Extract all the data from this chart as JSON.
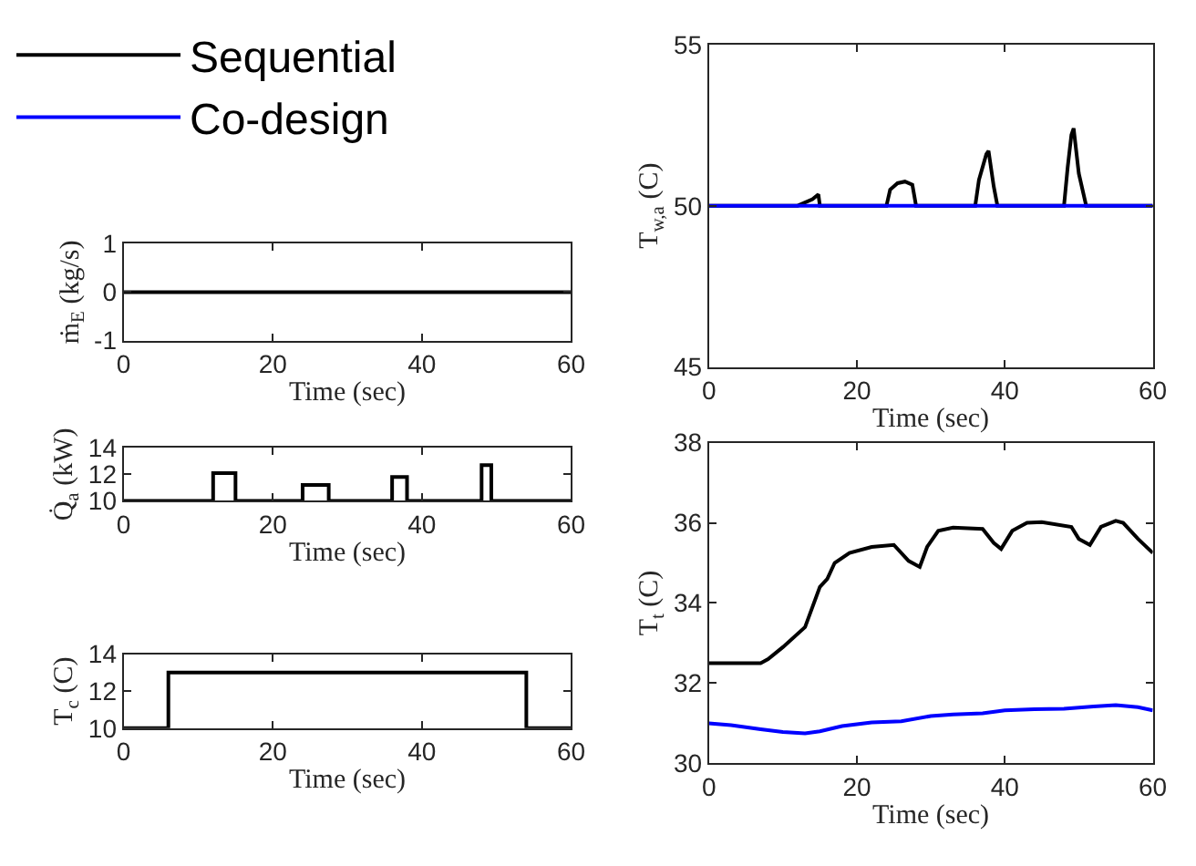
{
  "chart_data": [
    {
      "type": "line",
      "ylabel": "ṁ$_{E}$ (kg/s)",
      "xlabel": "Time (sec)",
      "xlim": [
        0,
        60
      ],
      "xticks": [
        0,
        20,
        40,
        60
      ],
      "ylim": [
        -1,
        1
      ],
      "yticks": [
        -1,
        0,
        1
      ],
      "series": [
        {
          "color": "#000000",
          "x": [
            0,
            60
          ],
          "values": [
            0,
            0
          ]
        }
      ]
    },
    {
      "type": "line",
      "ylabel": "T$_{w,a}$ (C)",
      "xlabel": "Time (sec)",
      "xlim": [
        0,
        60
      ],
      "xticks": [
        0,
        20,
        40,
        60
      ],
      "ylim": [
        45,
        55
      ],
      "yticks": [
        45,
        50,
        55
      ],
      "legend": "left",
      "series": [
        {
          "name": "Sequential",
          "color": "#000000",
          "x": [
            0,
            12,
            14,
            14.8,
            15,
            24,
            24.5,
            25.5,
            26.5,
            27.5,
            28,
            36,
            36.5,
            37.5,
            37.8,
            38.5,
            39,
            48,
            48.5,
            49,
            49.3,
            50,
            51,
            60
          ],
          "values": [
            50,
            50,
            50.2,
            50.35,
            50,
            50,
            50.5,
            50.7,
            50.75,
            50.65,
            50,
            50,
            50.8,
            51.6,
            51.7,
            50.6,
            50,
            50,
            51.2,
            52.2,
            52.4,
            51.0,
            50,
            50
          ]
        },
        {
          "name": "Co-design",
          "color": "#0000ff",
          "x": [
            0,
            60
          ],
          "values": [
            50,
            50
          ]
        }
      ]
    },
    {
      "type": "step",
      "ylabel": "Q̇$_{a}$ (kW)",
      "xlabel": "Time (sec)",
      "xlim": [
        0,
        60
      ],
      "xticks": [
        0,
        20,
        40,
        60
      ],
      "ylim": [
        10,
        14
      ],
      "yticks": [
        10,
        12,
        14
      ],
      "series": [
        {
          "color": "#000000",
          "x": [
            0,
            12,
            15,
            24,
            27.5,
            36,
            38,
            48,
            49.3,
            60
          ],
          "values": [
            10,
            12.1,
            10,
            11.2,
            10,
            11.8,
            10,
            12.7,
            10,
            10
          ]
        }
      ]
    },
    {
      "type": "line",
      "ylabel": "T$_{t}$ (C)",
      "xlabel": "Time (sec)",
      "xlim": [
        0,
        60
      ],
      "xticks": [
        0,
        20,
        40,
        60
      ],
      "ylim": [
        30,
        38
      ],
      "yticks": [
        30,
        32,
        34,
        36,
        38
      ],
      "series": [
        {
          "color": "#000000",
          "x": [
            0,
            7,
            8,
            10,
            13,
            14,
            15,
            16,
            17,
            19,
            22,
            25,
            27,
            28.5,
            29.5,
            31,
            33,
            37,
            38.5,
            39.5,
            41,
            43,
            45,
            49,
            50,
            51.5,
            53,
            55,
            56,
            58,
            60
          ],
          "values": [
            32.5,
            32.5,
            32.6,
            32.9,
            33.4,
            33.9,
            34.4,
            34.6,
            35.0,
            35.25,
            35.4,
            35.45,
            35.05,
            34.9,
            35.4,
            35.8,
            35.88,
            35.85,
            35.5,
            35.35,
            35.8,
            36.0,
            36.02,
            35.9,
            35.6,
            35.45,
            35.9,
            36.05,
            36.0,
            35.6,
            35.25
          ]
        },
        {
          "color": "#0000ff",
          "x": [
            0,
            3,
            7,
            10,
            13,
            15,
            18,
            22,
            26,
            30,
            33,
            37,
            40,
            44,
            48,
            52,
            55,
            58,
            60
          ],
          "values": [
            31.0,
            30.95,
            30.85,
            30.78,
            30.75,
            30.8,
            30.93,
            31.02,
            31.05,
            31.18,
            31.22,
            31.25,
            31.32,
            31.35,
            31.36,
            31.42,
            31.45,
            31.4,
            31.32
          ]
        }
      ]
    },
    {
      "type": "step",
      "ylabel": "T$_{c}$ (C)",
      "xlabel": "Time (sec)",
      "xlim": [
        0,
        60
      ],
      "xticks": [
        0,
        20,
        40,
        60
      ],
      "ylim": [
        10,
        14
      ],
      "yticks": [
        10,
        12,
        14
      ],
      "series": [
        {
          "color": "#000000",
          "x": [
            0,
            6,
            54,
            60
          ],
          "values": [
            10,
            13,
            10,
            10
          ]
        }
      ]
    }
  ]
}
